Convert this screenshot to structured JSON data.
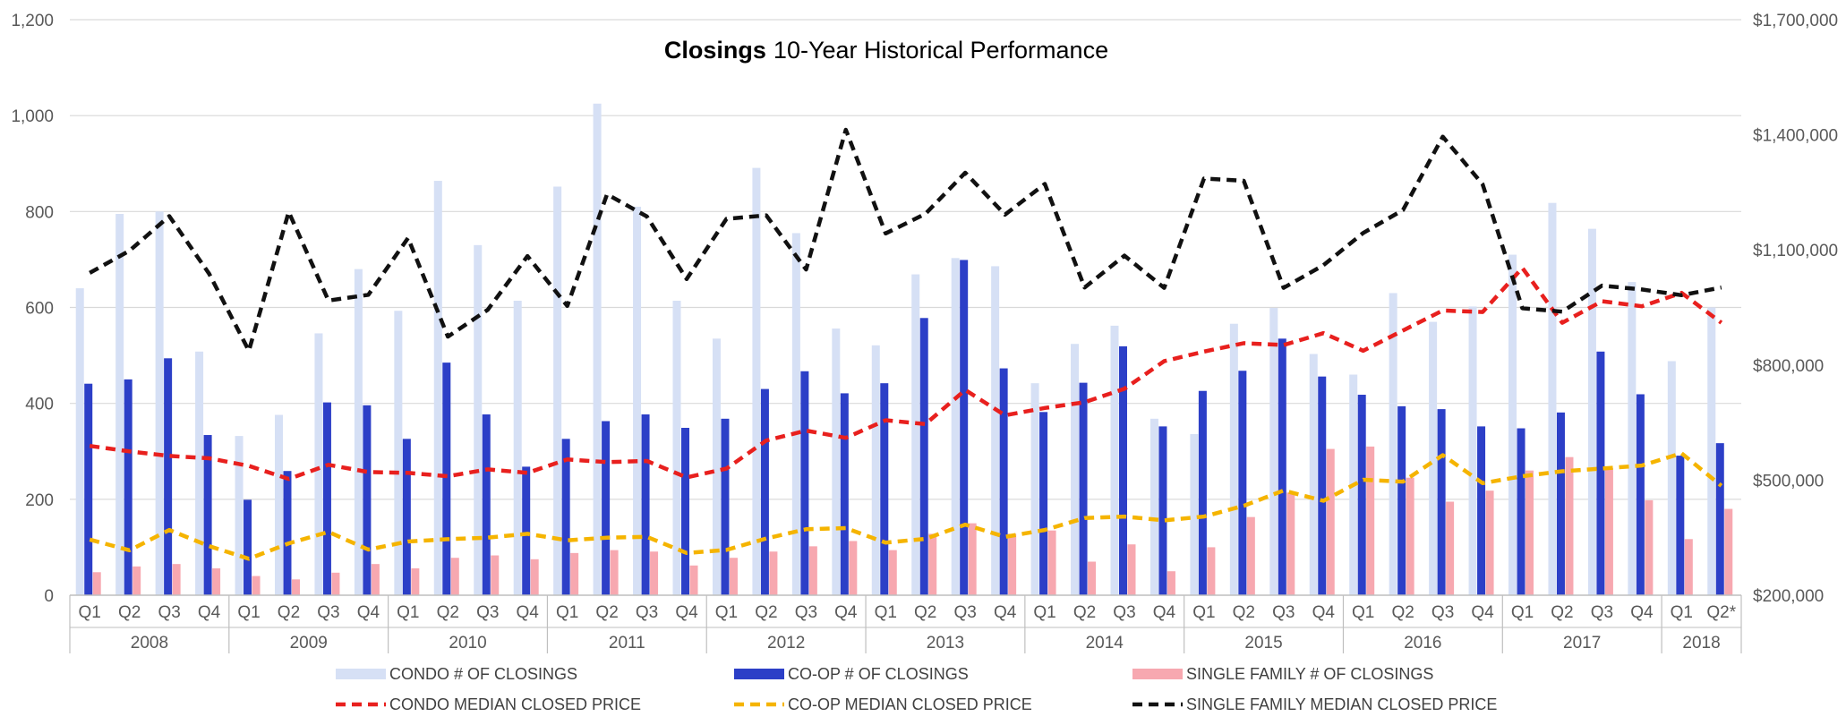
{
  "chart_data": {
    "type": "bar",
    "title_bold": "Closings",
    "title_rest": "10-Year Historical Performance",
    "colors": {
      "condo_bar": "#d6e0f5",
      "coop_bar": "#2c3fc7",
      "sf_bar": "#f7a8b0",
      "condo_line": "#e8201e",
      "coop_line": "#f5b400",
      "sf_line": "#111111",
      "grid": "#d9d9d9",
      "axis": "#bfbfbf"
    },
    "quarters": [
      "Q1",
      "Q2",
      "Q3",
      "Q4",
      "Q1",
      "Q2",
      "Q3",
      "Q4",
      "Q1",
      "Q2",
      "Q3",
      "Q4",
      "Q1",
      "Q2",
      "Q3",
      "Q4",
      "Q1",
      "Q2",
      "Q3",
      "Q4",
      "Q1",
      "Q2",
      "Q3",
      "Q4",
      "Q1",
      "Q2",
      "Q3",
      "Q4",
      "Q1",
      "Q2",
      "Q3",
      "Q4",
      "Q1",
      "Q2",
      "Q3",
      "Q4",
      "Q1",
      "Q2",
      "Q3",
      "Q4",
      "Q1",
      "Q2*"
    ],
    "years": [
      {
        "label": "2008",
        "count": 4
      },
      {
        "label": "2009",
        "count": 4
      },
      {
        "label": "2010",
        "count": 4
      },
      {
        "label": "2011",
        "count": 4
      },
      {
        "label": "2012",
        "count": 4
      },
      {
        "label": "2013",
        "count": 4
      },
      {
        "label": "2014",
        "count": 4
      },
      {
        "label": "2015",
        "count": 4
      },
      {
        "label": "2016",
        "count": 4
      },
      {
        "label": "2017",
        "count": 4
      },
      {
        "label": "2018",
        "count": 2
      }
    ],
    "y_left": {
      "min": 0,
      "max": 1200,
      "ticks": [
        0,
        200,
        400,
        600,
        800,
        1000,
        1200
      ],
      "tick_labels": [
        "0",
        "200",
        "400",
        "600",
        "800",
        "1,000",
        "1,200"
      ]
    },
    "y_right": {
      "min": 200000,
      "max": 1700000,
      "ticks": [
        200000,
        500000,
        800000,
        1100000,
        1400000,
        1700000
      ],
      "tick_labels": [
        "$200,000",
        "$500,000",
        "$800,000",
        "$1,100,000",
        "$1,400,000",
        "$1,700,000"
      ]
    },
    "bar_series": [
      {
        "name": "CONDO # OF CLOSINGS",
        "color_key": "condo_bar",
        "values": [
          640,
          795,
          800,
          508,
          332,
          376,
          546,
          680,
          593,
          864,
          730,
          614,
          852,
          1025,
          810,
          614,
          535,
          891,
          755,
          556,
          521,
          669,
          703,
          686,
          442,
          524,
          562,
          368,
          336,
          566,
          599,
          503,
          460,
          630,
          570,
          602,
          710,
          818,
          764,
          653,
          488,
          600
        ]
      },
      {
        "name": "CO-OP  # OF CLOSINGS",
        "color_key": "coop_bar",
        "values": [
          441,
          450,
          494,
          334,
          199,
          259,
          402,
          396,
          326,
          485,
          377,
          268,
          326,
          363,
          377,
          349,
          368,
          430,
          467,
          421,
          442,
          578,
          699,
          473,
          382,
          443,
          519,
          352,
          426,
          468,
          535,
          456,
          418,
          394,
          388,
          352,
          348,
          381,
          508,
          419,
          291,
          317
        ]
      },
      {
        "name": "SINGLE FAMILY # OF CLOSINGS",
        "color_key": "sf_bar",
        "values": [
          48,
          60,
          65,
          56,
          40,
          33,
          47,
          65,
          56,
          78,
          83,
          75,
          88,
          94,
          91,
          62,
          78,
          91,
          102,
          113,
          94,
          128,
          150,
          128,
          135,
          70,
          106,
          50,
          100,
          163,
          214,
          305,
          310,
          245,
          195,
          218,
          260,
          288,
          265,
          198,
          117,
          180
        ]
      }
    ],
    "line_series": [
      {
        "name": "CONDO MEDIAN CLOSED PRICE",
        "color_key": "condo_line",
        "values": [
          589000,
          575000,
          563000,
          557000,
          537000,
          503000,
          540000,
          521000,
          519000,
          510000,
          528000,
          519000,
          554000,
          547000,
          550000,
          507000,
          530000,
          603000,
          629000,
          610000,
          656000,
          646000,
          735000,
          669000,
          688000,
          703000,
          738000,
          810000,
          835000,
          857000,
          852000,
          883000,
          837000,
          890000,
          942000,
          938000,
          1053000,
          910000,
          966000,
          953000,
          988000,
          910000
        ]
      },
      {
        "name": "CO-OP  MEDIAN CLOSED PRICE",
        "color_key": "coop_line",
        "values": [
          345000,
          317000,
          370000,
          328000,
          295000,
          335000,
          365000,
          319000,
          340000,
          346000,
          350000,
          360000,
          343000,
          350000,
          352000,
          310000,
          318000,
          348000,
          372000,
          375000,
          337000,
          347000,
          384000,
          352000,
          370000,
          401000,
          405000,
          395000,
          405000,
          433000,
          473000,
          446000,
          501000,
          496000,
          565000,
          492000,
          510000,
          523000,
          530000,
          538000,
          570000,
          485000
        ]
      },
      {
        "name": "SINGLE FAMILY MEDIAN CLOSED PRICE",
        "color_key": "sf_line",
        "values": [
          1040000,
          1098000,
          1188000,
          1038000,
          837000,
          1199000,
          968000,
          983000,
          1131000,
          874000,
          944000,
          1084000,
          954000,
          1245000,
          1187000,
          1024000,
          1181000,
          1190000,
          1049000,
          1413000,
          1143000,
          1194000,
          1301000,
          1192000,
          1272000,
          1002000,
          1085000,
          1001000,
          1286000,
          1280000,
          1001000,
          1060000,
          1144000,
          1204000,
          1395000,
          1271000,
          948000,
          939000,
          1007000,
          997000,
          982000,
          1002000
        ]
      }
    ]
  }
}
